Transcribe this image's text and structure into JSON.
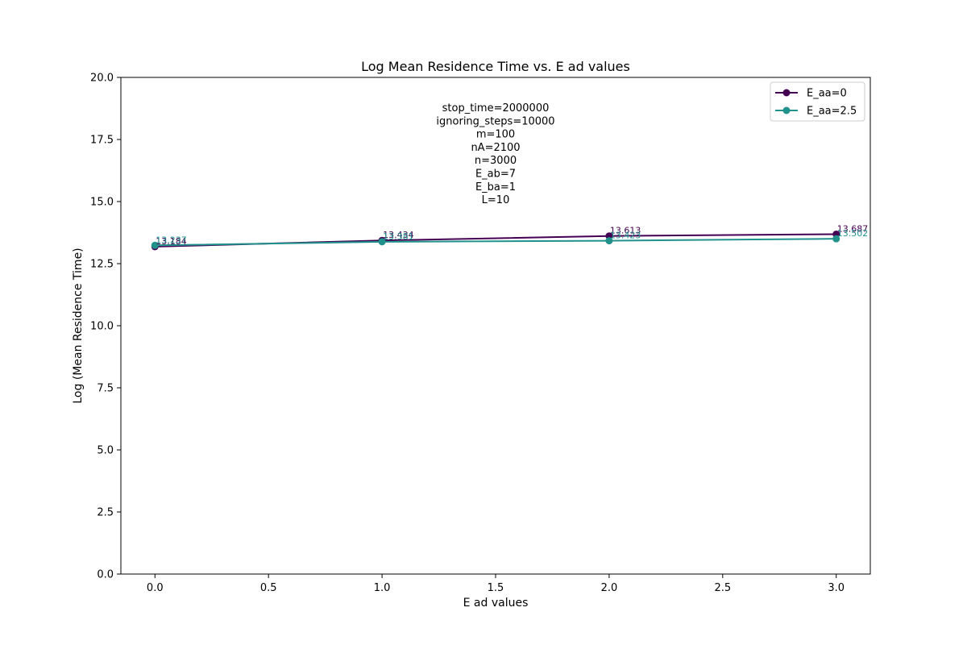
{
  "chart_data": {
    "type": "line",
    "title": "Log Mean Residence Time vs. E ad values",
    "xlabel": "E ad values",
    "ylabel": "Log (Mean Residence Time)",
    "xlim": [
      -0.15,
      3.15
    ],
    "ylim": [
      0,
      20
    ],
    "x_ticks": [
      0.0,
      0.5,
      1.0,
      1.5,
      2.0,
      2.5,
      3.0
    ],
    "x_tick_labels": [
      "0.0",
      "0.5",
      "1.0",
      "1.5",
      "2.0",
      "2.5",
      "3.0"
    ],
    "y_ticks": [
      0.0,
      2.5,
      5.0,
      7.5,
      10.0,
      12.5,
      15.0,
      17.5,
      20.0
    ],
    "y_tick_labels": [
      "0.0",
      "2.5",
      "5.0",
      "7.5",
      "10.0",
      "12.5",
      "15.0",
      "17.5",
      "20.0"
    ],
    "x": [
      0,
      1,
      2,
      3
    ],
    "series": [
      {
        "name": "E_aa=0",
        "color": "#440154",
        "values": [
          13.184,
          13.434,
          13.613,
          13.687
        ],
        "labels": [
          "13.184",
          "13.434",
          "13.613",
          "13.687"
        ]
      },
      {
        "name": "E_aa=2.5",
        "color": "#21918c",
        "values": [
          13.237,
          13.381,
          13.423,
          13.502
        ],
        "labels": [
          "13.237",
          "13.381",
          "13.423",
          "13.502"
        ]
      }
    ],
    "annotation_lines": [
      "stop_time=2000000",
      "ignoring_steps=10000",
      "m=100",
      "nA=2100",
      "n=3000",
      "E_ab=7",
      "E_ba=1",
      "L=10"
    ],
    "legend_position": "top-right",
    "grid": false
  }
}
